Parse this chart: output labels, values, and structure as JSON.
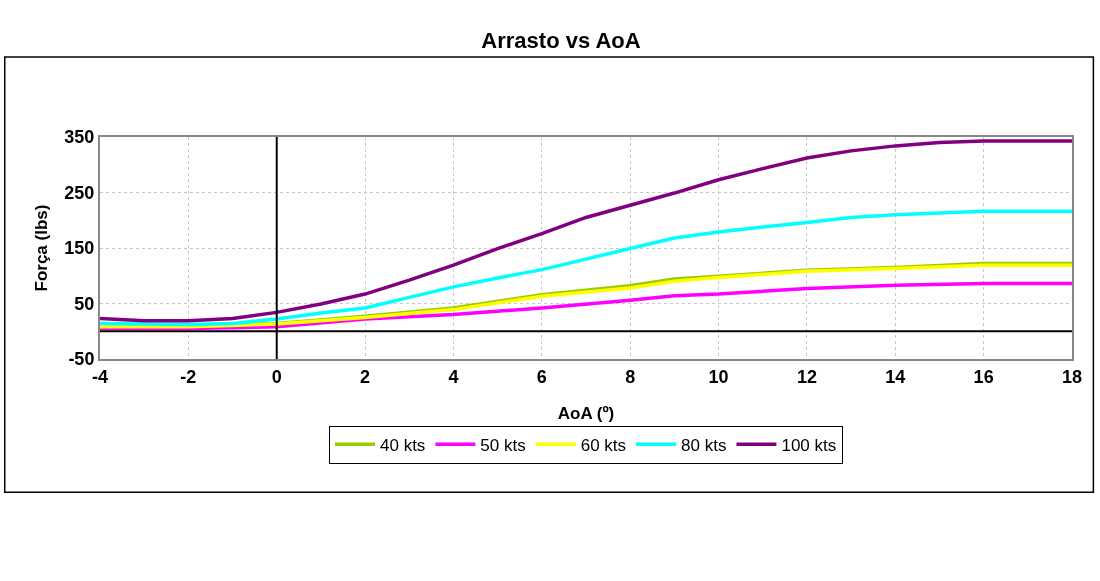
{
  "chart_data": {
    "type": "line",
    "title": "Arrasto vs AoA",
    "xlabel": "AoA (º)",
    "ylabel": "Força (lbs)",
    "xlim": [
      -4,
      18
    ],
    "xticks": [
      -4,
      -2,
      0,
      2,
      4,
      6,
      8,
      10,
      12,
      14,
      16,
      18
    ],
    "ylim": [
      -50,
      350
    ],
    "yticks": [
      -50,
      50,
      150,
      250,
      350
    ],
    "grid": true,
    "legend": "bottom",
    "marker": "none",
    "line_style": "solid",
    "series": [
      {
        "name": "40 kts",
        "color": "#99cc00",
        "x": [
          -4,
          -2,
          0,
          2,
          4,
          6,
          8,
          9,
          10,
          12,
          14,
          16,
          18
        ],
        "values": [
          9,
          9,
          14,
          27,
          42,
          66,
          82,
          94,
          99,
          110,
          115,
          122,
          122
        ]
      },
      {
        "name": "50 kts",
        "color": "#ff00ff",
        "x": [
          -4,
          -2,
          0,
          2,
          4,
          6,
          8,
          9,
          10,
          12,
          14,
          16,
          18
        ],
        "values": [
          5,
          5,
          8,
          22,
          30,
          42,
          56,
          64,
          67,
          77,
          83,
          86,
          86
        ]
      },
      {
        "name": "60 kts",
        "color": "#ffff00",
        "x": [
          -4,
          -2,
          0,
          2,
          4,
          6,
          8,
          9,
          10,
          12,
          14,
          16,
          18
        ],
        "values": [
          8,
          8,
          13,
          25,
          39,
          63,
          78,
          90,
          97,
          108,
          113,
          119,
          119
        ]
      },
      {
        "name": "80 kts",
        "color": "#00ffff",
        "x": [
          -4,
          -2,
          -1,
          0,
          1,
          2,
          3,
          4,
          5,
          6,
          7,
          8,
          9,
          10,
          11,
          12,
          13,
          14,
          15,
          16,
          18
        ],
        "values": [
          14,
          12,
          14,
          22,
          33,
          42,
          61,
          80,
          96,
          111,
          130,
          149,
          168,
          179,
          188,
          196,
          205,
          210,
          213,
          216,
          216
        ]
      },
      {
        "name": "100 kts",
        "color": "#800080",
        "x": [
          -4,
          -3,
          -2,
          -1,
          0,
          1,
          2,
          3,
          4,
          5,
          6,
          7,
          8,
          9,
          10,
          11,
          12,
          13,
          14,
          15,
          16,
          17,
          18
        ],
        "values": [
          23,
          19,
          19,
          23,
          34,
          49,
          67,
          92,
          119,
          149,
          176,
          205,
          227,
          249,
          273,
          293,
          312,
          325,
          334,
          340,
          343,
          343,
          343
        ]
      }
    ]
  }
}
